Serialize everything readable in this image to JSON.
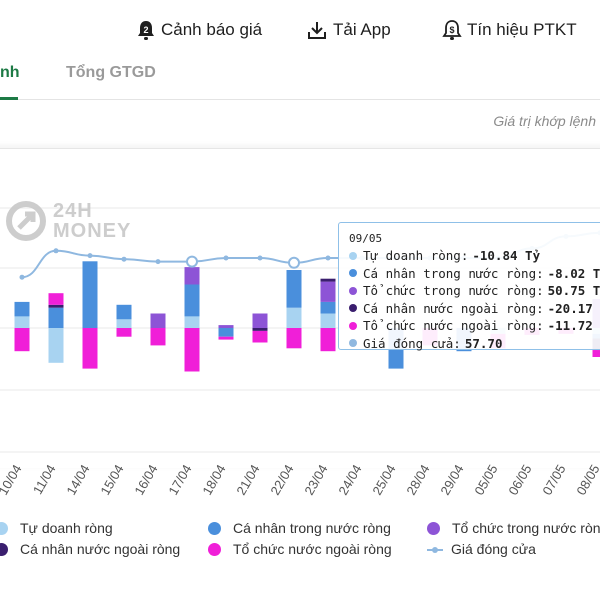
{
  "header": {
    "items": [
      {
        "label": "Cảnh báo giá",
        "icon": "bell-alert-icon"
      },
      {
        "label": "Tải App",
        "icon": "download-icon"
      },
      {
        "label": "Tín hiệu PTKT",
        "icon": "signal-bell-icon"
      }
    ]
  },
  "tabs": [
    {
      "label": "nh",
      "active": true
    },
    {
      "label": "Tổng GTGD",
      "active": false
    }
  ],
  "subnote": "Giá trị khớp lệnh",
  "watermark": {
    "line1": "24H",
    "line2": "MONEY"
  },
  "colors": {
    "tu_doanh": "#a8d3f1",
    "ca_nhan_trong_nuoc": "#4a8fdc",
    "to_chuc_trong_nuoc": "#8d54d6",
    "ca_nhan_nuoc_ngoai": "#3a1e6e",
    "to_chuc_nuoc_ngoai": "#f01fd8",
    "gia_dong_cua": "#8fb8e0"
  },
  "tooltip": {
    "date": "09/05",
    "rows": [
      {
        "label": "Tự doanh ròng:",
        "value": "-10.84 Tỷ",
        "color": "#a8d3f1"
      },
      {
        "label": "Cá nhân trong nước ròng:",
        "value": "-8.02 Tỷ",
        "color": "#4a8fdc"
      },
      {
        "label": "Tổ chức trong nước ròng:",
        "value": "50.75 Tỷ",
        "color": "#8d54d6"
      },
      {
        "label": "Cá nhân nước ngoài ròng:",
        "value": "-20.17 Tỷ",
        "color": "#3a1e6e"
      },
      {
        "label": "Tổ chức nước ngoài ròng:",
        "value": "-11.72 Tỷ",
        "color": "#f01fd8"
      },
      {
        "label": "Giá đóng cửa:",
        "value": "57.70",
        "color": "#8fb8e0"
      }
    ]
  },
  "legend": [
    {
      "label": "Tự doanh ròng",
      "color": "#a8d3f1"
    },
    {
      "label": "Cá nhân trong nước ròng",
      "color": "#4a8fdc"
    },
    {
      "label": "Tổ chức trong nước ròng",
      "color": "#8d54d6"
    },
    {
      "label": "Cá nhân nước ngoài ròng",
      "color": "#3a1e6e"
    },
    {
      "label": "Tổ chức nước ngoài ròng",
      "color": "#f01fd8"
    },
    {
      "label": "Giá đóng cửa",
      "color": "#8fb8e0"
    }
  ],
  "chart_data": {
    "type": "bar",
    "stacked": true,
    "categories": [
      "10/04",
      "11/04",
      "14/04",
      "15/04",
      "16/04",
      "17/04",
      "18/04",
      "21/04",
      "22/04",
      "23/04",
      "24/04",
      "25/04",
      "28/04",
      "29/04",
      "05/05",
      "06/05",
      "07/05",
      "08/05"
    ],
    "series": [
      {
        "name": "Tự doanh ròng",
        "values": [
          20,
          -60,
          0,
          15,
          0,
          20,
          0,
          0,
          35,
          25,
          0,
          0,
          0,
          0,
          -10,
          0,
          0,
          -10
        ]
      },
      {
        "name": "Cá nhân trong nước ròng",
        "values": [
          25,
          35,
          115,
          25,
          0,
          55,
          -15,
          0,
          65,
          20,
          0,
          -70,
          0,
          -40,
          0,
          0,
          0,
          -8
        ]
      },
      {
        "name": "Tổ chức trong nước ròng",
        "values": [
          0,
          0,
          0,
          0,
          25,
          30,
          5,
          25,
          0,
          35,
          0,
          0,
          0,
          0,
          0,
          0,
          0,
          50
        ]
      },
      {
        "name": "Cá nhân nước ngoài ròng",
        "values": [
          0,
          5,
          0,
          0,
          0,
          0,
          0,
          -5,
          0,
          5,
          0,
          0,
          0,
          0,
          0,
          0,
          0,
          -20
        ]
      },
      {
        "name": "Tổ chức nước ngoài ròng",
        "values": [
          -40,
          20,
          -70,
          -15,
          -30,
          -75,
          -5,
          -20,
          -35,
          -40,
          0,
          0,
          -30,
          0,
          -25,
          -12,
          -10,
          -12
        ]
      }
    ],
    "line": {
      "name": "Giá đóng cửa",
      "values": [
        54.0,
        56.2,
        55.8,
        55.5,
        55.3,
        55.3,
        55.6,
        55.6,
        55.2,
        55.6,
        55.6,
        55.6,
        55.6,
        55.6,
        55.6,
        56.4,
        57.4,
        57.7
      ]
    }
  }
}
